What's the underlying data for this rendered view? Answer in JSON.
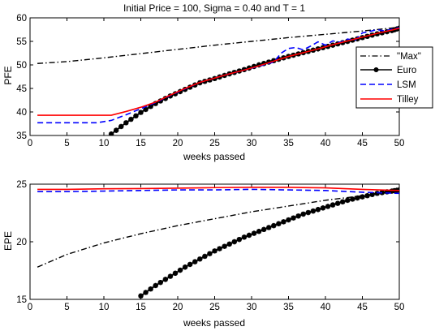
{
  "chart_data": [
    {
      "type": "line",
      "title": "Initial Price = 100, Sigma = 0.40 and T = 1",
      "xlabel": "weeks passed",
      "ylabel": "PFE",
      "xlim": [
        0,
        50
      ],
      "ylim": [
        35,
        60
      ],
      "xticks": [
        0,
        5,
        10,
        15,
        20,
        25,
        30,
        35,
        40,
        45,
        50
      ],
      "yticks": [
        35,
        40,
        45,
        50,
        55,
        60
      ],
      "grid": false,
      "legend_position": "right",
      "series": [
        {
          "name": "\"Max\"",
          "color": "#000000",
          "style": "dash-dot",
          "x": [
            1,
            5,
            10,
            15,
            20,
            25,
            30,
            35,
            40,
            45,
            50
          ],
          "y": [
            50.3,
            50.7,
            51.5,
            52.4,
            53.3,
            54.2,
            55.0,
            55.8,
            56.5,
            57.2,
            58.0
          ]
        },
        {
          "name": "Euro",
          "color": "#000000",
          "style": "solid-star",
          "x": [
            11,
            13,
            15,
            17,
            19,
            21,
            23,
            25,
            27,
            29,
            31,
            33,
            35,
            37,
            39,
            41,
            43,
            45,
            47,
            49,
            50
          ],
          "y": [
            35.3,
            37.7,
            39.9,
            41.8,
            43.4,
            44.8,
            46.2,
            47.1,
            48.1,
            49.0,
            50.0,
            50.9,
            51.8,
            52.6,
            53.4,
            54.2,
            55.0,
            55.8,
            56.6,
            57.3,
            57.8
          ]
        },
        {
          "name": "LSM",
          "color": "#0000ff",
          "style": "dashed",
          "x": [
            1,
            5,
            9,
            11,
            13,
            15,
            17,
            19,
            21,
            23,
            25,
            27,
            29,
            31,
            33,
            34,
            35,
            36,
            37,
            38,
            39,
            40,
            41,
            42,
            43,
            44,
            45,
            46,
            47,
            48,
            49,
            50
          ],
          "y": [
            37.7,
            37.7,
            37.7,
            38.2,
            39.4,
            40.7,
            42.0,
            43.5,
            44.9,
            46.3,
            47.2,
            48.1,
            48.9,
            49.7,
            50.6,
            52.5,
            53.5,
            53.7,
            53.2,
            54.0,
            54.9,
            54.2,
            55.1,
            54.8,
            55.5,
            55.2,
            56.8,
            57.1,
            57.5,
            57.2,
            57.6,
            57.9
          ]
        },
        {
          "name": "Tilley",
          "color": "#ff0000",
          "style": "solid",
          "x": [
            1,
            5,
            10,
            11,
            13,
            15,
            17,
            19,
            21,
            23,
            25,
            27,
            29,
            31,
            33,
            35,
            37,
            39,
            41,
            43,
            45,
            47,
            49,
            50
          ],
          "y": [
            39.3,
            39.3,
            39.3,
            39.3,
            40.1,
            41.0,
            42.1,
            43.6,
            45.0,
            46.3,
            47.2,
            48.1,
            48.9,
            49.8,
            50.8,
            51.8,
            52.6,
            53.4,
            54.3,
            55.1,
            55.9,
            56.7,
            57.4,
            57.8
          ]
        }
      ]
    },
    {
      "type": "line",
      "title": "",
      "xlabel": "weeks passed",
      "ylabel": "EPE",
      "xlim": [
        0,
        50
      ],
      "ylim": [
        15,
        25
      ],
      "xticks": [
        0,
        5,
        10,
        15,
        20,
        25,
        30,
        35,
        40,
        45,
        50
      ],
      "yticks": [
        15,
        20,
        25
      ],
      "grid": false,
      "series": [
        {
          "name": "\"Max\"",
          "color": "#000000",
          "style": "dash-dot",
          "x": [
            1,
            5,
            10,
            15,
            20,
            25,
            30,
            35,
            40,
            45,
            50
          ],
          "y": [
            17.8,
            18.9,
            19.9,
            20.7,
            21.4,
            22.0,
            22.6,
            23.1,
            23.6,
            24.0,
            24.4
          ]
        },
        {
          "name": "Euro",
          "color": "#000000",
          "style": "solid-star",
          "x": [
            15,
            17,
            19,
            21,
            23,
            25,
            27,
            29,
            31,
            33,
            35,
            37,
            39,
            41,
            43,
            45,
            47,
            49,
            50
          ],
          "y": [
            15.3,
            16.2,
            17.0,
            17.8,
            18.5,
            19.2,
            19.8,
            20.4,
            20.9,
            21.4,
            21.9,
            22.4,
            22.8,
            23.2,
            23.6,
            23.9,
            24.2,
            24.4,
            24.5
          ]
        },
        {
          "name": "LSM",
          "color": "#0000ff",
          "style": "dashed",
          "x": [
            1,
            5,
            10,
            15,
            20,
            25,
            30,
            35,
            40,
            45,
            50
          ],
          "y": [
            24.35,
            24.35,
            24.4,
            24.45,
            24.5,
            24.5,
            24.55,
            24.5,
            24.45,
            24.3,
            24.2
          ]
        },
        {
          "name": "Tilley",
          "color": "#ff0000",
          "style": "solid",
          "x": [
            1,
            5,
            10,
            15,
            20,
            25,
            30,
            35,
            40,
            45,
            50
          ],
          "y": [
            24.55,
            24.55,
            24.6,
            24.62,
            24.65,
            24.7,
            24.72,
            24.72,
            24.68,
            24.55,
            24.45
          ]
        }
      ]
    }
  ]
}
